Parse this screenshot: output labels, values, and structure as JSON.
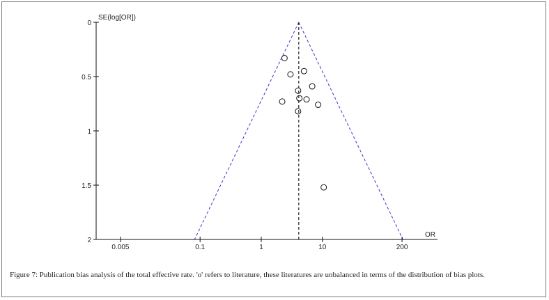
{
  "chart_data": {
    "type": "scatter",
    "ylabel": "SE(log[OR])",
    "xlabel": "OR",
    "x_scale": "log",
    "x_ticks": [
      0.005,
      0.1,
      1,
      10,
      200
    ],
    "x_tick_labels": [
      "0.005",
      "0.1",
      "1",
      "10",
      "200"
    ],
    "y_ticks": [
      0,
      0.5,
      1,
      1.5,
      2
    ],
    "y_tick_labels": [
      "0",
      "0.5",
      "1",
      "1.5",
      "2"
    ],
    "xlim": [
      0.002,
      500
    ],
    "ylim": [
      0,
      2
    ],
    "y_inverted": true,
    "pooled_or": 4.1,
    "points": [
      {
        "x": 2.4,
        "y": 0.33
      },
      {
        "x": 5.0,
        "y": 0.45
      },
      {
        "x": 3.0,
        "y": 0.48
      },
      {
        "x": 6.8,
        "y": 0.59
      },
      {
        "x": 4.0,
        "y": 0.63
      },
      {
        "x": 4.2,
        "y": 0.7
      },
      {
        "x": 5.5,
        "y": 0.71
      },
      {
        "x": 2.2,
        "y": 0.73
      },
      {
        "x": 8.5,
        "y": 0.76
      },
      {
        "x": 4.0,
        "y": 0.82
      },
      {
        "x": 10.5,
        "y": 1.52
      }
    ],
    "colors": {
      "funnel": "#3a3acc",
      "points": "#111111",
      "axis": "#111111"
    }
  },
  "caption": {
    "text": "Figure 7: Publication bias analysis of the total effective rate. 'o' refers to literature, these literatures are unbalanced in terms of the distribution of bias plots."
  }
}
